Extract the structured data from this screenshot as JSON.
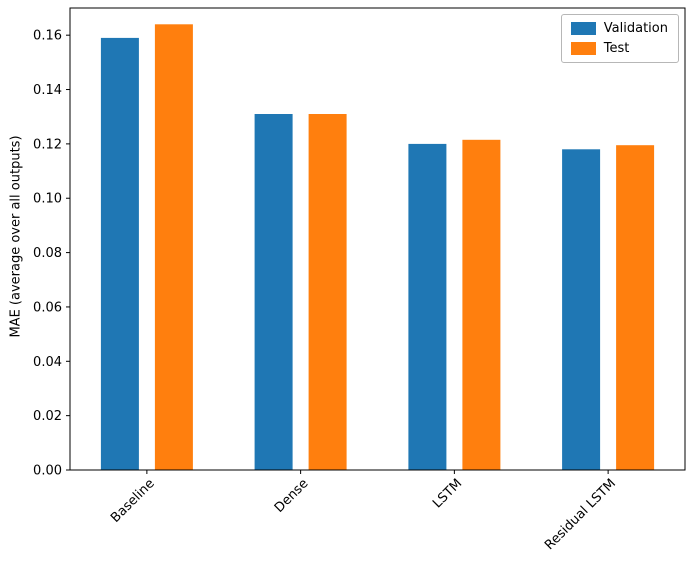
{
  "chart_data": {
    "type": "bar",
    "title": "",
    "xlabel": "",
    "ylabel": "MAE (average over all outputs)",
    "categories": [
      "Baseline",
      "Dense",
      "LSTM",
      "Residual LSTM"
    ],
    "series": [
      {
        "name": "Validation",
        "color": "#1f77b4",
        "values": [
          0.159,
          0.131,
          0.12,
          0.118
        ]
      },
      {
        "name": "Test",
        "color": "#ff7f0e",
        "values": [
          0.164,
          0.131,
          0.1215,
          0.1195
        ]
      }
    ],
    "ylim": [
      0,
      0.17
    ],
    "yticks": [
      0.0,
      0.02,
      0.04,
      0.06,
      0.08,
      0.1,
      0.12,
      0.14,
      0.16
    ],
    "ytick_format_decimals": 2,
    "xtick_rotation": 45,
    "grid": false,
    "legend_position": "upper right"
  }
}
